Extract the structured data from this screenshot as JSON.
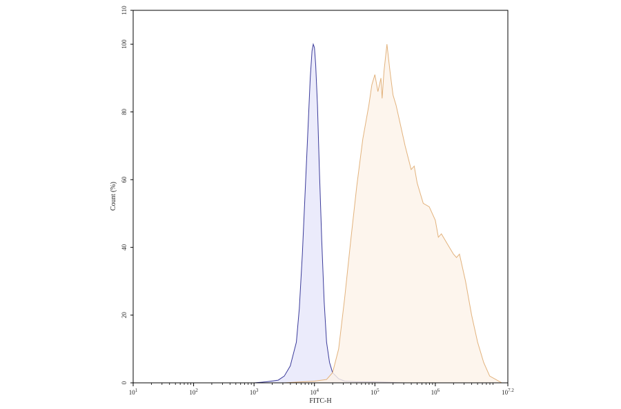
{
  "chart_data": {
    "type": "area",
    "title": "",
    "xlabel": "FITC-H",
    "ylabel": "Count (%)",
    "xscale": "log10",
    "xlim_log10": [
      1,
      7.2
    ],
    "ylim": [
      0,
      110
    ],
    "grid": false,
    "legend": "none",
    "x_ticks": [
      {
        "base": "10",
        "exp": "1",
        "log10": 1
      },
      {
        "base": "10",
        "exp": "2",
        "log10": 2
      },
      {
        "base": "10",
        "exp": "3",
        "log10": 3
      },
      {
        "base": "10",
        "exp": "4",
        "log10": 4
      },
      {
        "base": "10",
        "exp": "5",
        "log10": 5
      },
      {
        "base": "10",
        "exp": "6",
        "log10": 6
      },
      {
        "base": "10",
        "exp": "7.2",
        "log10": 7.2
      }
    ],
    "y_ticks": [
      "0",
      "20",
      "40",
      "60",
      "80",
      "100",
      "110"
    ],
    "series": [
      {
        "color": "#3a3a9a",
        "fill": "#e6e6fa",
        "log10_x": [
          3.0,
          3.2,
          3.4,
          3.5,
          3.6,
          3.7,
          3.75,
          3.8,
          3.85,
          3.9,
          3.93,
          3.96,
          3.98,
          4.0,
          4.02,
          4.05,
          4.08,
          4.12,
          4.16,
          4.2,
          4.25,
          4.3,
          4.4,
          4.5,
          4.7,
          5.0,
          5.5
        ],
        "values": [
          0,
          0.3,
          0.8,
          2,
          5,
          12,
          22,
          38,
          58,
          78,
          90,
          98,
          100,
          99,
          94,
          82,
          64,
          42,
          24,
          12,
          6,
          3,
          1.2,
          0.5,
          0.3,
          0.3,
          0
        ]
      },
      {
        "color": "#e2b27c",
        "fill": "#fdf2e8",
        "log10_x": [
          3.5,
          4.0,
          4.2,
          4.3,
          4.4,
          4.5,
          4.6,
          4.7,
          4.8,
          4.9,
          4.95,
          5.0,
          5.05,
          5.1,
          5.12,
          5.15,
          5.2,
          5.25,
          5.3,
          5.35,
          5.4,
          5.5,
          5.6,
          5.65,
          5.7,
          5.75,
          5.8,
          5.9,
          6.0,
          6.05,
          6.1,
          6.2,
          6.3,
          6.35,
          6.4,
          6.5,
          6.6,
          6.7,
          6.8,
          6.9,
          7.0,
          7.1
        ],
        "values": [
          0,
          0.5,
          1,
          3,
          10,
          25,
          42,
          58,
          72,
          82,
          88,
          91,
          86,
          90,
          84,
          92,
          100,
          92,
          85,
          82,
          78,
          70,
          63,
          64,
          59,
          56,
          53,
          52,
          48,
          43,
          44,
          41,
          38,
          37,
          38,
          30,
          20,
          12,
          6,
          2,
          1,
          0
        ]
      }
    ]
  }
}
